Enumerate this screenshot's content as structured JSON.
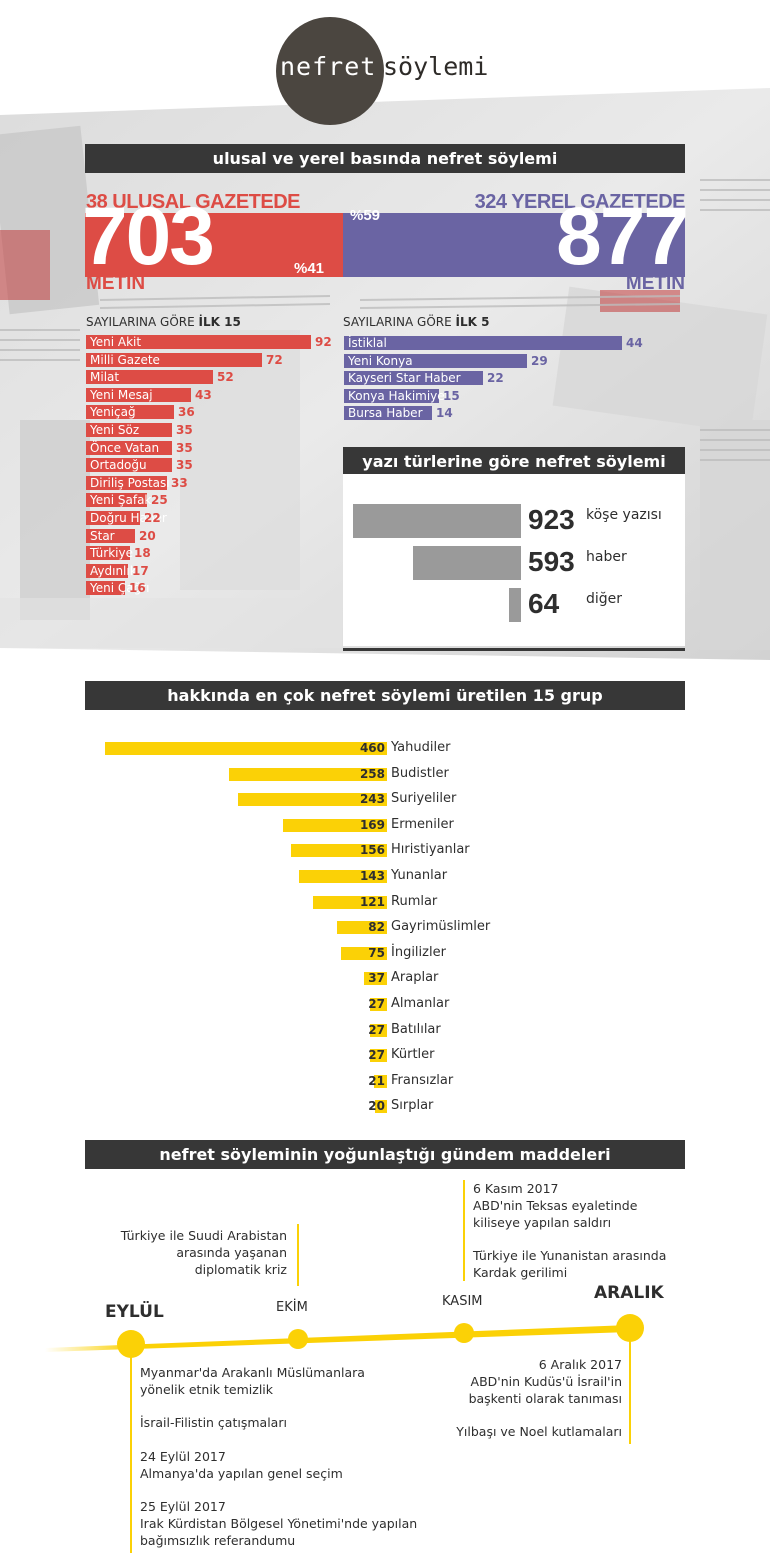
{
  "logo": {
    "part1": "nefret",
    "part2": "söylemi"
  },
  "section1": {
    "title": "ulusal ve yerel basında nefret söylemi",
    "national": {
      "title": "38 ULUSAL GAZETEDE",
      "number": "703",
      "unit": "METİN",
      "percent": "%41"
    },
    "local": {
      "title": "324 YEREL GAZETEDE",
      "number": "877",
      "unit": "METİN",
      "percent": "%59"
    }
  },
  "colors": {
    "national": "#dd4c45",
    "local": "#6a64a3",
    "groups": "#fbd106",
    "types": "#9a9a9a",
    "header": "#373737"
  },
  "national_list": {
    "heading_prefix": "SAYILARINA GÖRE ",
    "heading_bold": "İLK 15",
    "items": [
      {
        "name": "Yeni Akit",
        "value": 92
      },
      {
        "name": "Milli Gazete",
        "value": 72
      },
      {
        "name": "Milat",
        "value": 52
      },
      {
        "name": "Yeni Mesaj",
        "value": 43
      },
      {
        "name": "Yeniçağ",
        "value": 36
      },
      {
        "name": "Yeni Söz",
        "value": 35
      },
      {
        "name": "Önce Vatan",
        "value": 35
      },
      {
        "name": "Ortadoğu",
        "value": 35
      },
      {
        "name": "Diriliş Postası",
        "value": 33
      },
      {
        "name": "Yeni Şafak",
        "value": 25
      },
      {
        "name": "Doğru Haber",
        "value": 22
      },
      {
        "name": "Star",
        "value": 20
      },
      {
        "name": "Türkiye",
        "value": 18
      },
      {
        "name": "Aydınlık",
        "value": 17
      },
      {
        "name": "Yeni Çağrı",
        "value": 16
      }
    ]
  },
  "local_list": {
    "heading_prefix": "SAYILARINA GÖRE ",
    "heading_bold": "İLK 5",
    "items": [
      {
        "name": "İstiklal",
        "value": 44
      },
      {
        "name": "Yeni Konya",
        "value": 29
      },
      {
        "name": "Kayseri Star Haber",
        "value": 22
      },
      {
        "name": "Konya Hakimiyet",
        "value": 15
      },
      {
        "name": "Bursa Haber",
        "value": 14
      }
    ]
  },
  "types": {
    "title": "yazı türlerine göre nefret söylemi",
    "items": [
      {
        "name": "köşe yazısı",
        "value": 923
      },
      {
        "name": "haber",
        "value": 593
      },
      {
        "name": "diğer",
        "value": 64
      }
    ]
  },
  "groups": {
    "title": "hakkında en çok nefret söylemi üretilen 15 grup"
  },
  "chart_data": {
    "type": "bar",
    "orientation": "horizontal",
    "categories": [
      "Yahudiler",
      "Budistler",
      "Suriyeliler",
      "Ermeniler",
      "Hıristiyanlar",
      "Yunanlar",
      "Rumlar",
      "Gayrimüslimler",
      "İngilizler",
      "Araplar",
      "Almanlar",
      "Batılılar",
      "Kürtler",
      "Fransızlar",
      "Sırplar"
    ],
    "values": [
      460,
      258,
      243,
      169,
      156,
      143,
      121,
      82,
      75,
      37,
      27,
      27,
      27,
      21,
      20
    ],
    "title": "hakkında en çok nefret söylemi üretilen 15 grup",
    "xlabel": "",
    "ylabel": ""
  },
  "timeline": {
    "title": "nefret söyleminin yoğunlaştığı gündem maddeleri",
    "months": [
      "EYLÜL",
      "EKİM",
      "KASIM",
      "ARALIK"
    ],
    "oct_note": [
      "Türkiye ile Suudi Arabistan",
      "arasında yaşanan",
      "diplomatik kriz"
    ],
    "nov_note1": [
      "6 Kasım 2017",
      "ABD'nin Teksas eyaletinde",
      "kiliseye yapılan saldırı"
    ],
    "nov_note2": [
      "Türkiye ile Yunanistan arasında",
      "Kardak gerilimi"
    ],
    "sep_notes": [
      [
        "Myanmar'da Arakanlı Müslümanlara",
        "yönelik etnik temizlik"
      ],
      [
        "İsrail-Filistin çatışmaları"
      ],
      [
        "24 Eylül 2017",
        "Almanya'da yapılan genel seçim"
      ],
      [
        "25 Eylül 2017",
        "Irak Kürdistan Bölgesel Yönetimi'nde yapılan",
        "bağımsızlık referandumu"
      ]
    ],
    "dec_notes": [
      [
        "6 Aralık 2017",
        "ABD'nin Kudüs'ü İsrail'in",
        "başkenti olarak tanıması"
      ],
      [
        "Yılbaşı ve Noel kutlamaları"
      ]
    ]
  }
}
